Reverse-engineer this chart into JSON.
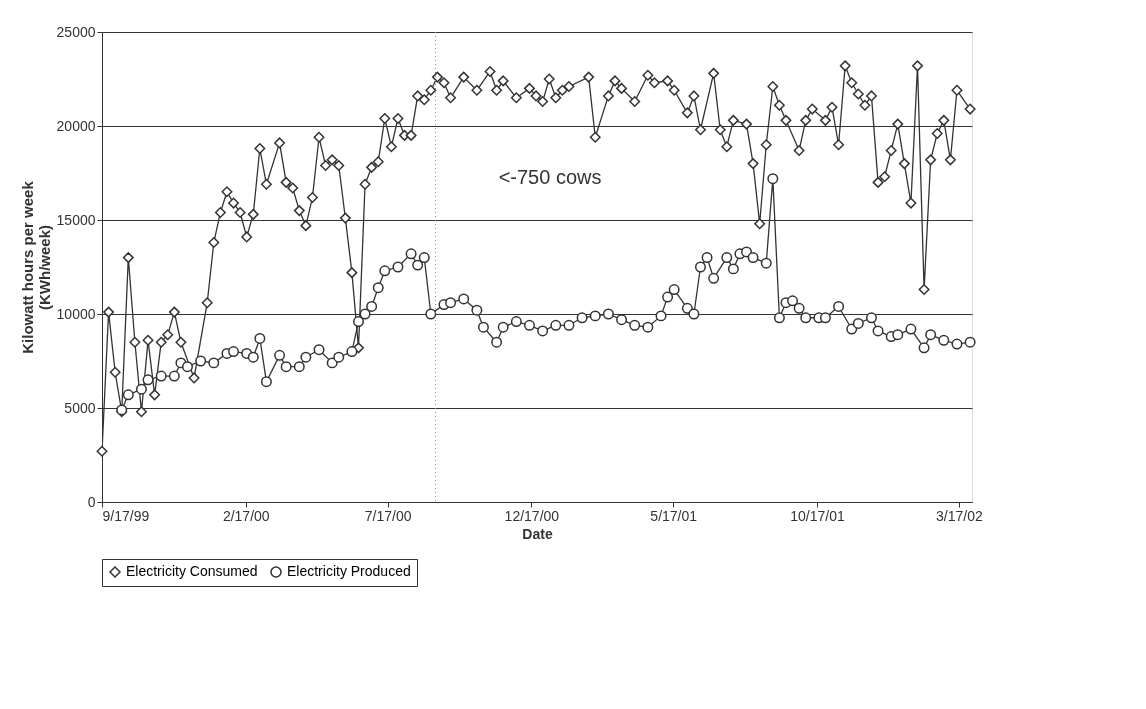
{
  "chart_data": {
    "type": "line",
    "xlabel": "Date",
    "ylabel": "Kilowatt hours per week\n(KWh/week)",
    "xlim": [
      "1999-09-17",
      "2002-03-31"
    ],
    "xticks": [
      {
        "value": "1999-09-17",
        "label": "9/17/99"
      },
      {
        "value": "2000-02-17",
        "label": "2/17/00"
      },
      {
        "value": "2000-07-17",
        "label": "7/17/00"
      },
      {
        "value": "2000-12-17",
        "label": "12/17/00"
      },
      {
        "value": "2001-05-17",
        "label": "5/17/01"
      },
      {
        "value": "2001-10-17",
        "label": "10/17/01"
      },
      {
        "value": "2002-03-17",
        "label": "3/17/02"
      }
    ],
    "ylim": [
      0,
      25000
    ],
    "yticks": [
      0,
      5000,
      10000,
      15000,
      20000,
      25000
    ],
    "grid": "y",
    "legend": "bottom",
    "ref_lines": [
      {
        "axis": "x",
        "value": "2000-09-06",
        "label": null,
        "color": "#888888",
        "line_style": "dotted"
      }
    ],
    "annotations": [
      "<-750 cows"
    ],
    "series": [
      {
        "name": "Electricity Consumed",
        "color": "#333333",
        "marker": "diamond",
        "x": [
          "1999-09-17",
          "1999-09-24",
          "1999-10-01",
          "1999-10-08",
          "1999-10-15",
          "1999-10-22",
          "1999-10-29",
          "1999-11-05",
          "1999-11-12",
          "1999-11-19",
          "1999-11-26",
          "1999-12-03",
          "1999-12-10",
          "1999-12-24",
          "2000-01-07",
          "2000-01-14",
          "2000-01-21",
          "2000-01-28",
          "2000-02-04",
          "2000-02-11",
          "2000-02-18",
          "2000-02-25",
          "2000-03-03",
          "2000-03-10",
          "2000-03-24",
          "2000-03-31",
          "2000-04-07",
          "2000-04-14",
          "2000-04-21",
          "2000-04-28",
          "2000-05-05",
          "2000-05-12",
          "2000-05-19",
          "2000-05-26",
          "2000-06-02",
          "2000-06-09",
          "2000-06-16",
          "2000-06-23",
          "2000-06-30",
          "2000-07-07",
          "2000-07-14",
          "2000-07-21",
          "2000-07-28",
          "2000-08-04",
          "2000-08-11",
          "2000-08-18",
          "2000-08-25",
          "2000-09-01",
          "2000-09-08",
          "2000-09-15",
          "2000-09-22",
          "2000-10-06",
          "2000-10-20",
          "2000-11-03",
          "2000-11-10",
          "2000-11-17",
          "2000-12-01",
          "2000-12-15",
          "2000-12-22",
          "2000-12-29",
          "2001-01-05",
          "2001-01-12",
          "2001-01-19",
          "2001-01-26",
          "2001-02-16",
          "2001-02-23",
          "2001-03-09",
          "2001-03-16",
          "2001-03-23",
          "2001-04-06",
          "2001-04-20",
          "2001-04-27",
          "2001-05-11",
          "2001-05-18",
          "2001-06-01",
          "2001-06-08",
          "2001-06-15",
          "2001-06-29",
          "2001-07-06",
          "2001-07-13",
          "2001-07-20",
          "2001-08-03",
          "2001-08-10",
          "2001-08-17",
          "2001-08-24",
          "2001-08-31",
          "2001-09-07",
          "2001-09-14",
          "2001-09-28",
          "2001-10-05",
          "2001-10-12",
          "2001-10-26",
          "2001-11-02",
          "2001-11-09",
          "2001-11-16",
          "2001-11-23",
          "2001-11-30",
          "2001-12-07",
          "2001-12-14",
          "2001-12-21",
          "2001-12-28",
          "2002-01-04",
          "2002-01-11",
          "2002-01-18",
          "2002-01-25",
          "2002-02-01",
          "2002-02-08",
          "2002-02-15",
          "2002-02-22",
          "2002-03-01",
          "2002-03-08",
          "2002-03-15",
          "2002-03-29"
        ],
        "values": [
          2700,
          10100,
          6900,
          4800,
          13000,
          8500,
          4800,
          8600,
          5700,
          8500,
          8900,
          10100,
          8500,
          6600,
          10600,
          13800,
          15400,
          16500,
          15900,
          15400,
          14100,
          15300,
          18800,
          16900,
          19100,
          17000,
          16700,
          15500,
          14700,
          16200,
          19400,
          17900,
          18200,
          17900,
          15100,
          12200,
          8200,
          16900,
          17800,
          18100,
          20400,
          18900,
          20400,
          19500,
          19500,
          21600,
          21400,
          21900,
          22600,
          22300,
          21500,
          22600,
          21900,
          22900,
          21900,
          22400,
          21500,
          22000,
          21600,
          21300,
          22500,
          21500,
          21900,
          22100,
          22600,
          19400,
          21600,
          22400,
          22000,
          21300,
          22700,
          22300,
          22400,
          21900,
          20700,
          21600,
          19800,
          22800,
          19800,
          18900,
          20300,
          20100,
          18000,
          14800,
          19000,
          22100,
          21100,
          20300,
          18700,
          20300,
          20900,
          20300,
          21000,
          19000,
          23200,
          22300,
          21700,
          21100,
          21600,
          17000,
          17300,
          18700,
          20100,
          18000,
          15900,
          23200,
          11300,
          18200,
          19600,
          20300,
          18200,
          21900,
          20900
        ]
      },
      {
        "name": "Electricity Produced",
        "color": "#333333",
        "marker": "circle",
        "x": [
          "1999-10-08",
          "1999-10-15",
          "1999-10-29",
          "1999-11-05",
          "1999-11-19",
          "1999-12-03",
          "1999-12-10",
          "1999-12-17",
          "1999-12-31",
          "2000-01-14",
          "2000-01-28",
          "2000-02-04",
          "2000-02-18",
          "2000-02-25",
          "2000-03-03",
          "2000-03-10",
          "2000-03-24",
          "2000-03-31",
          "2000-04-14",
          "2000-04-21",
          "2000-05-05",
          "2000-05-19",
          "2000-05-26",
          "2000-06-09",
          "2000-06-16",
          "2000-06-23",
          "2000-06-30",
          "2000-07-07",
          "2000-07-14",
          "2000-07-28",
          "2000-08-11",
          "2000-08-18",
          "2000-08-25",
          "2000-09-01",
          "2000-09-15",
          "2000-09-22",
          "2000-10-06",
          "2000-10-20",
          "2000-10-27",
          "2000-11-10",
          "2000-11-17",
          "2000-12-01",
          "2000-12-15",
          "2000-12-29",
          "2001-01-12",
          "2001-01-26",
          "2001-02-09",
          "2001-02-23",
          "2001-03-09",
          "2001-03-23",
          "2001-04-06",
          "2001-04-20",
          "2001-05-04",
          "2001-05-11",
          "2001-05-18",
          "2001-06-01",
          "2001-06-08",
          "2001-06-15",
          "2001-06-22",
          "2001-06-29",
          "2001-07-13",
          "2001-07-20",
          "2001-07-27",
          "2001-08-03",
          "2001-08-10",
          "2001-08-24",
          "2001-08-31",
          "2001-09-07",
          "2001-09-14",
          "2001-09-21",
          "2001-09-28",
          "2001-10-05",
          "2001-10-19",
          "2001-10-26",
          "2001-11-09",
          "2001-11-23",
          "2001-11-30",
          "2001-12-14",
          "2001-12-21",
          "2002-01-04",
          "2002-01-11",
          "2002-01-25",
          "2002-02-08",
          "2002-02-15",
          "2002-03-01",
          "2002-03-15",
          "2002-03-29"
        ],
        "values": [
          4900,
          5700,
          6000,
          6500,
          6700,
          6700,
          7400,
          7200,
          7500,
          7400,
          7900,
          8000,
          7900,
          7700,
          8700,
          6400,
          7800,
          7200,
          7200,
          7700,
          8100,
          7400,
          7700,
          8000,
          9600,
          10000,
          10400,
          11400,
          12300,
          12500,
          13200,
          12600,
          13000,
          10000,
          10500,
          10600,
          10800,
          10200,
          9300,
          8500,
          9300,
          9600,
          9400,
          9100,
          9400,
          9400,
          9800,
          9900,
          10000,
          9700,
          9400,
          9300,
          9900,
          10900,
          11300,
          10300,
          10000,
          12500,
          13000,
          11900,
          13000,
          12400,
          13200,
          13300,
          13000,
          12700,
          17200,
          9800,
          10600,
          10700,
          10300,
          9800,
          9800,
          9800,
          10400,
          9200,
          9500,
          9800,
          9100,
          8800,
          8900,
          9200,
          8200,
          8900,
          8600,
          8400,
          8500
        ]
      }
    ]
  }
}
